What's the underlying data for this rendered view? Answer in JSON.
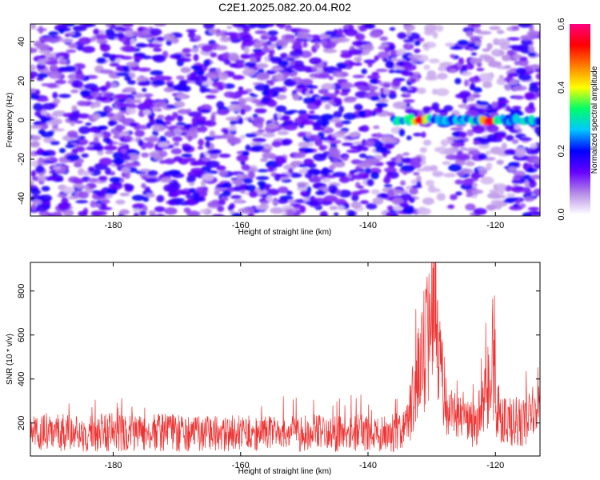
{
  "chart_data": [
    {
      "type": "heatmap",
      "title": "C2E1.2025.082.20.04.R02",
      "xlabel": "Height of straight line (km)",
      "ylabel": "Frequency (Hz)",
      "xlim": [
        -193,
        -113
      ],
      "ylim": [
        -49,
        49
      ],
      "xticks": [
        -180,
        -160,
        -140,
        -120
      ],
      "yticks": [
        40,
        20,
        0,
        -20,
        -40
      ],
      "colorbar": {
        "label": "Normalized spectral amplitude",
        "range": [
          0.0,
          0.6
        ],
        "ticks": [
          "0.0",
          "0.2",
          "0.4",
          "0.6"
        ],
        "colormap": [
          "#ffffff",
          "#b58ae6",
          "#6600ff",
          "#0000ff",
          "#00c8ff",
          "#00ff66",
          "#ffff00",
          "#ff8000",
          "#ff0000",
          "#ff0080"
        ]
      },
      "features": [
        {
          "x_range": [
            -136,
            -113
          ],
          "frequency": 0,
          "peak_value": 0.55,
          "peaks_at_km": [
            -132,
            -121
          ]
        }
      ],
      "background_level": [
        0.05,
        0.2
      ]
    },
    {
      "type": "line",
      "xlabel": "Height of straight line (km)",
      "ylabel": "SNR (10 * v/v)",
      "xlim": [
        -193,
        -113
      ],
      "ylim": [
        50,
        930
      ],
      "xticks": [
        -180,
        -160,
        -140,
        -120
      ],
      "yticks": [
        200,
        400,
        600,
        800
      ],
      "color": "#ee3333",
      "series": [
        {
          "values_description_free": true,
          "x": [
            -193,
            -190,
            -187,
            -184,
            -181,
            -178,
            -175,
            -172,
            -169,
            -166,
            -163,
            -160,
            -157,
            -154,
            -151,
            -148,
            -145,
            -142,
            -139,
            -136,
            -134,
            -133,
            -132,
            -131,
            -130,
            -129.5,
            -129,
            -128,
            -127,
            -126,
            -125,
            -124,
            -123,
            -122,
            -121,
            -120.5,
            -120,
            -119,
            -118,
            -117,
            -116,
            -115,
            -114,
            -113
          ],
          "y": [
            150,
            160,
            155,
            150,
            160,
            155,
            150,
            160,
            150,
            155,
            150,
            160,
            150,
            155,
            150,
            155,
            150,
            160,
            150,
            155,
            170,
            300,
            480,
            560,
            600,
            870,
            520,
            330,
            250,
            220,
            200,
            190,
            200,
            260,
            380,
            560,
            290,
            210,
            200,
            210,
            200,
            220,
            240,
            260
          ]
        }
      ]
    }
  ]
}
